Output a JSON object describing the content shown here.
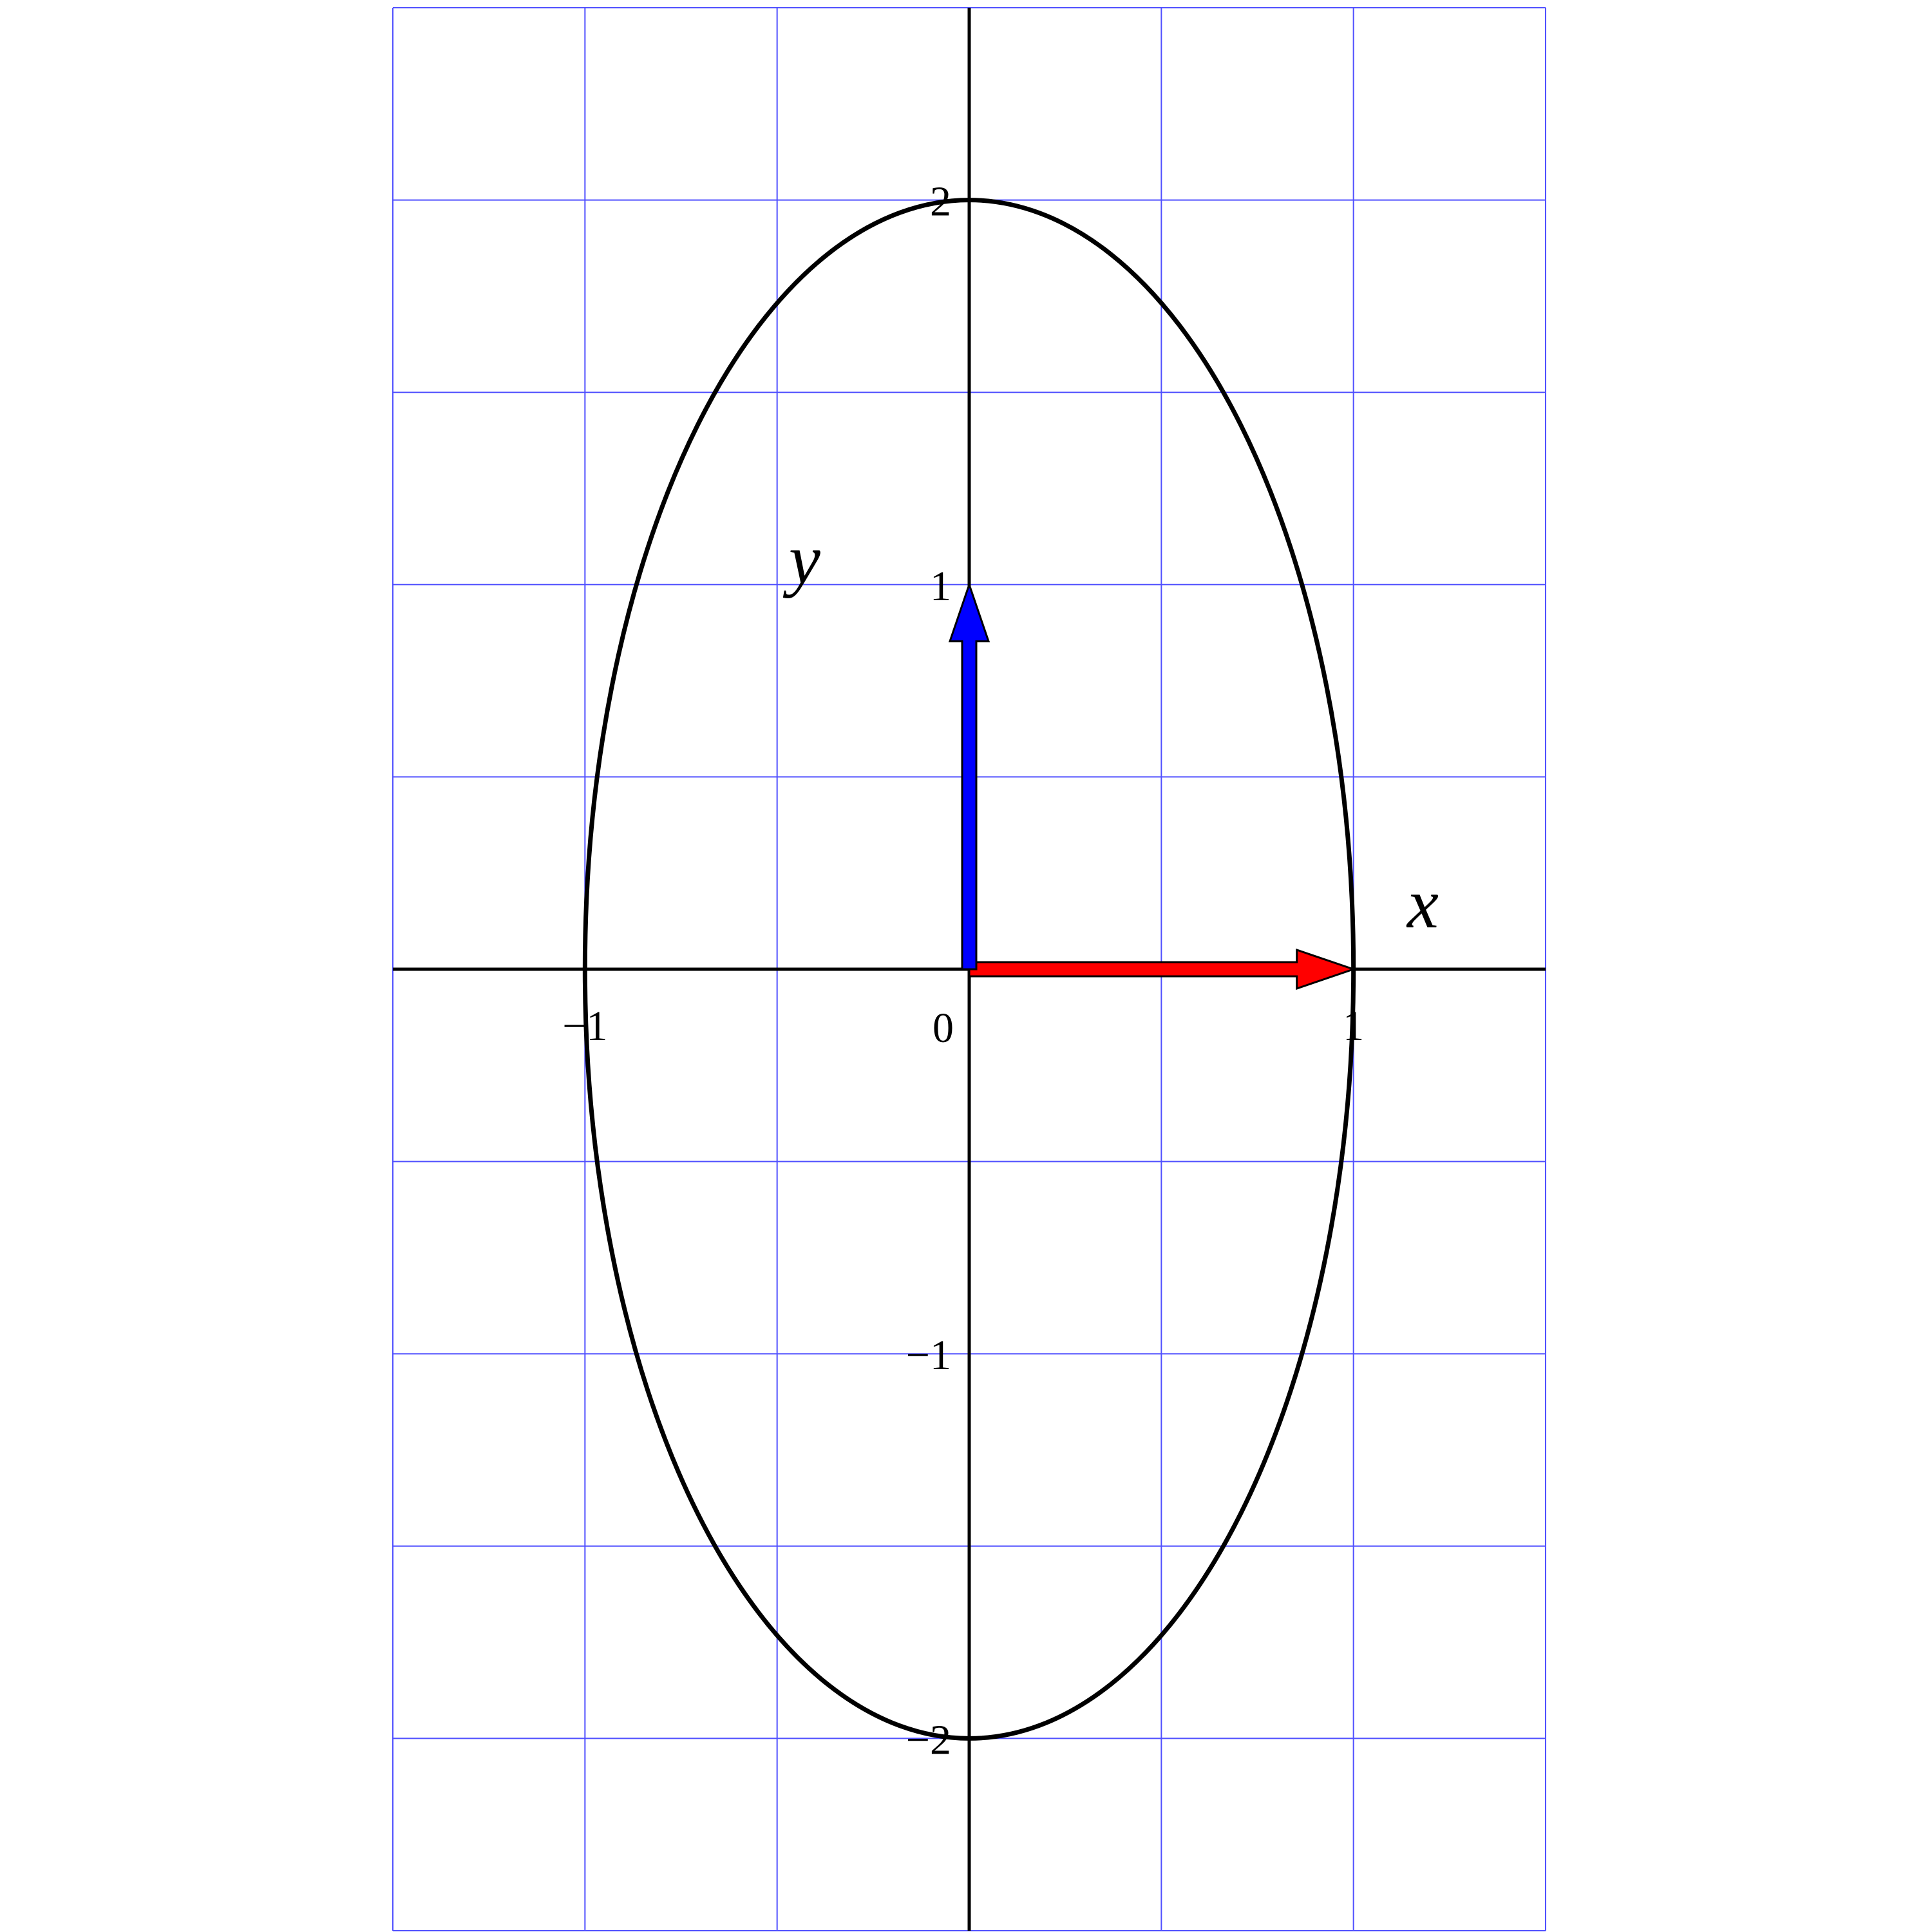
{
  "diagram": {
    "x_range": [
      -1.5,
      1.5
    ],
    "y_range": [
      -2.5,
      2.5
    ],
    "grid_step": 0.5,
    "grid": true,
    "grid_color": "#5050ff",
    "axis_color": "#000000",
    "ellipse": {
      "semi_axis_x": 1,
      "semi_axis_y": 2,
      "color": "#000000"
    },
    "vectors": [
      {
        "name": "red",
        "from": [
          0,
          0
        ],
        "to": [
          1,
          0
        ],
        "color": "#ff0000"
      },
      {
        "name": "blue",
        "from": [
          0,
          0
        ],
        "to": [
          0,
          1
        ],
        "color": "#0000ff"
      }
    ],
    "axis_names": {
      "x": "x",
      "y": "y"
    },
    "origin_label": "0",
    "x_ticks": [
      {
        "value": -1,
        "label": "−1"
      },
      {
        "value": 1,
        "label": "1"
      }
    ],
    "y_ticks": [
      {
        "value": 2,
        "label": "2"
      },
      {
        "value": 1,
        "label": "1"
      },
      {
        "value": -1,
        "label": "−1"
      },
      {
        "value": -2,
        "label": "−2"
      }
    ]
  }
}
